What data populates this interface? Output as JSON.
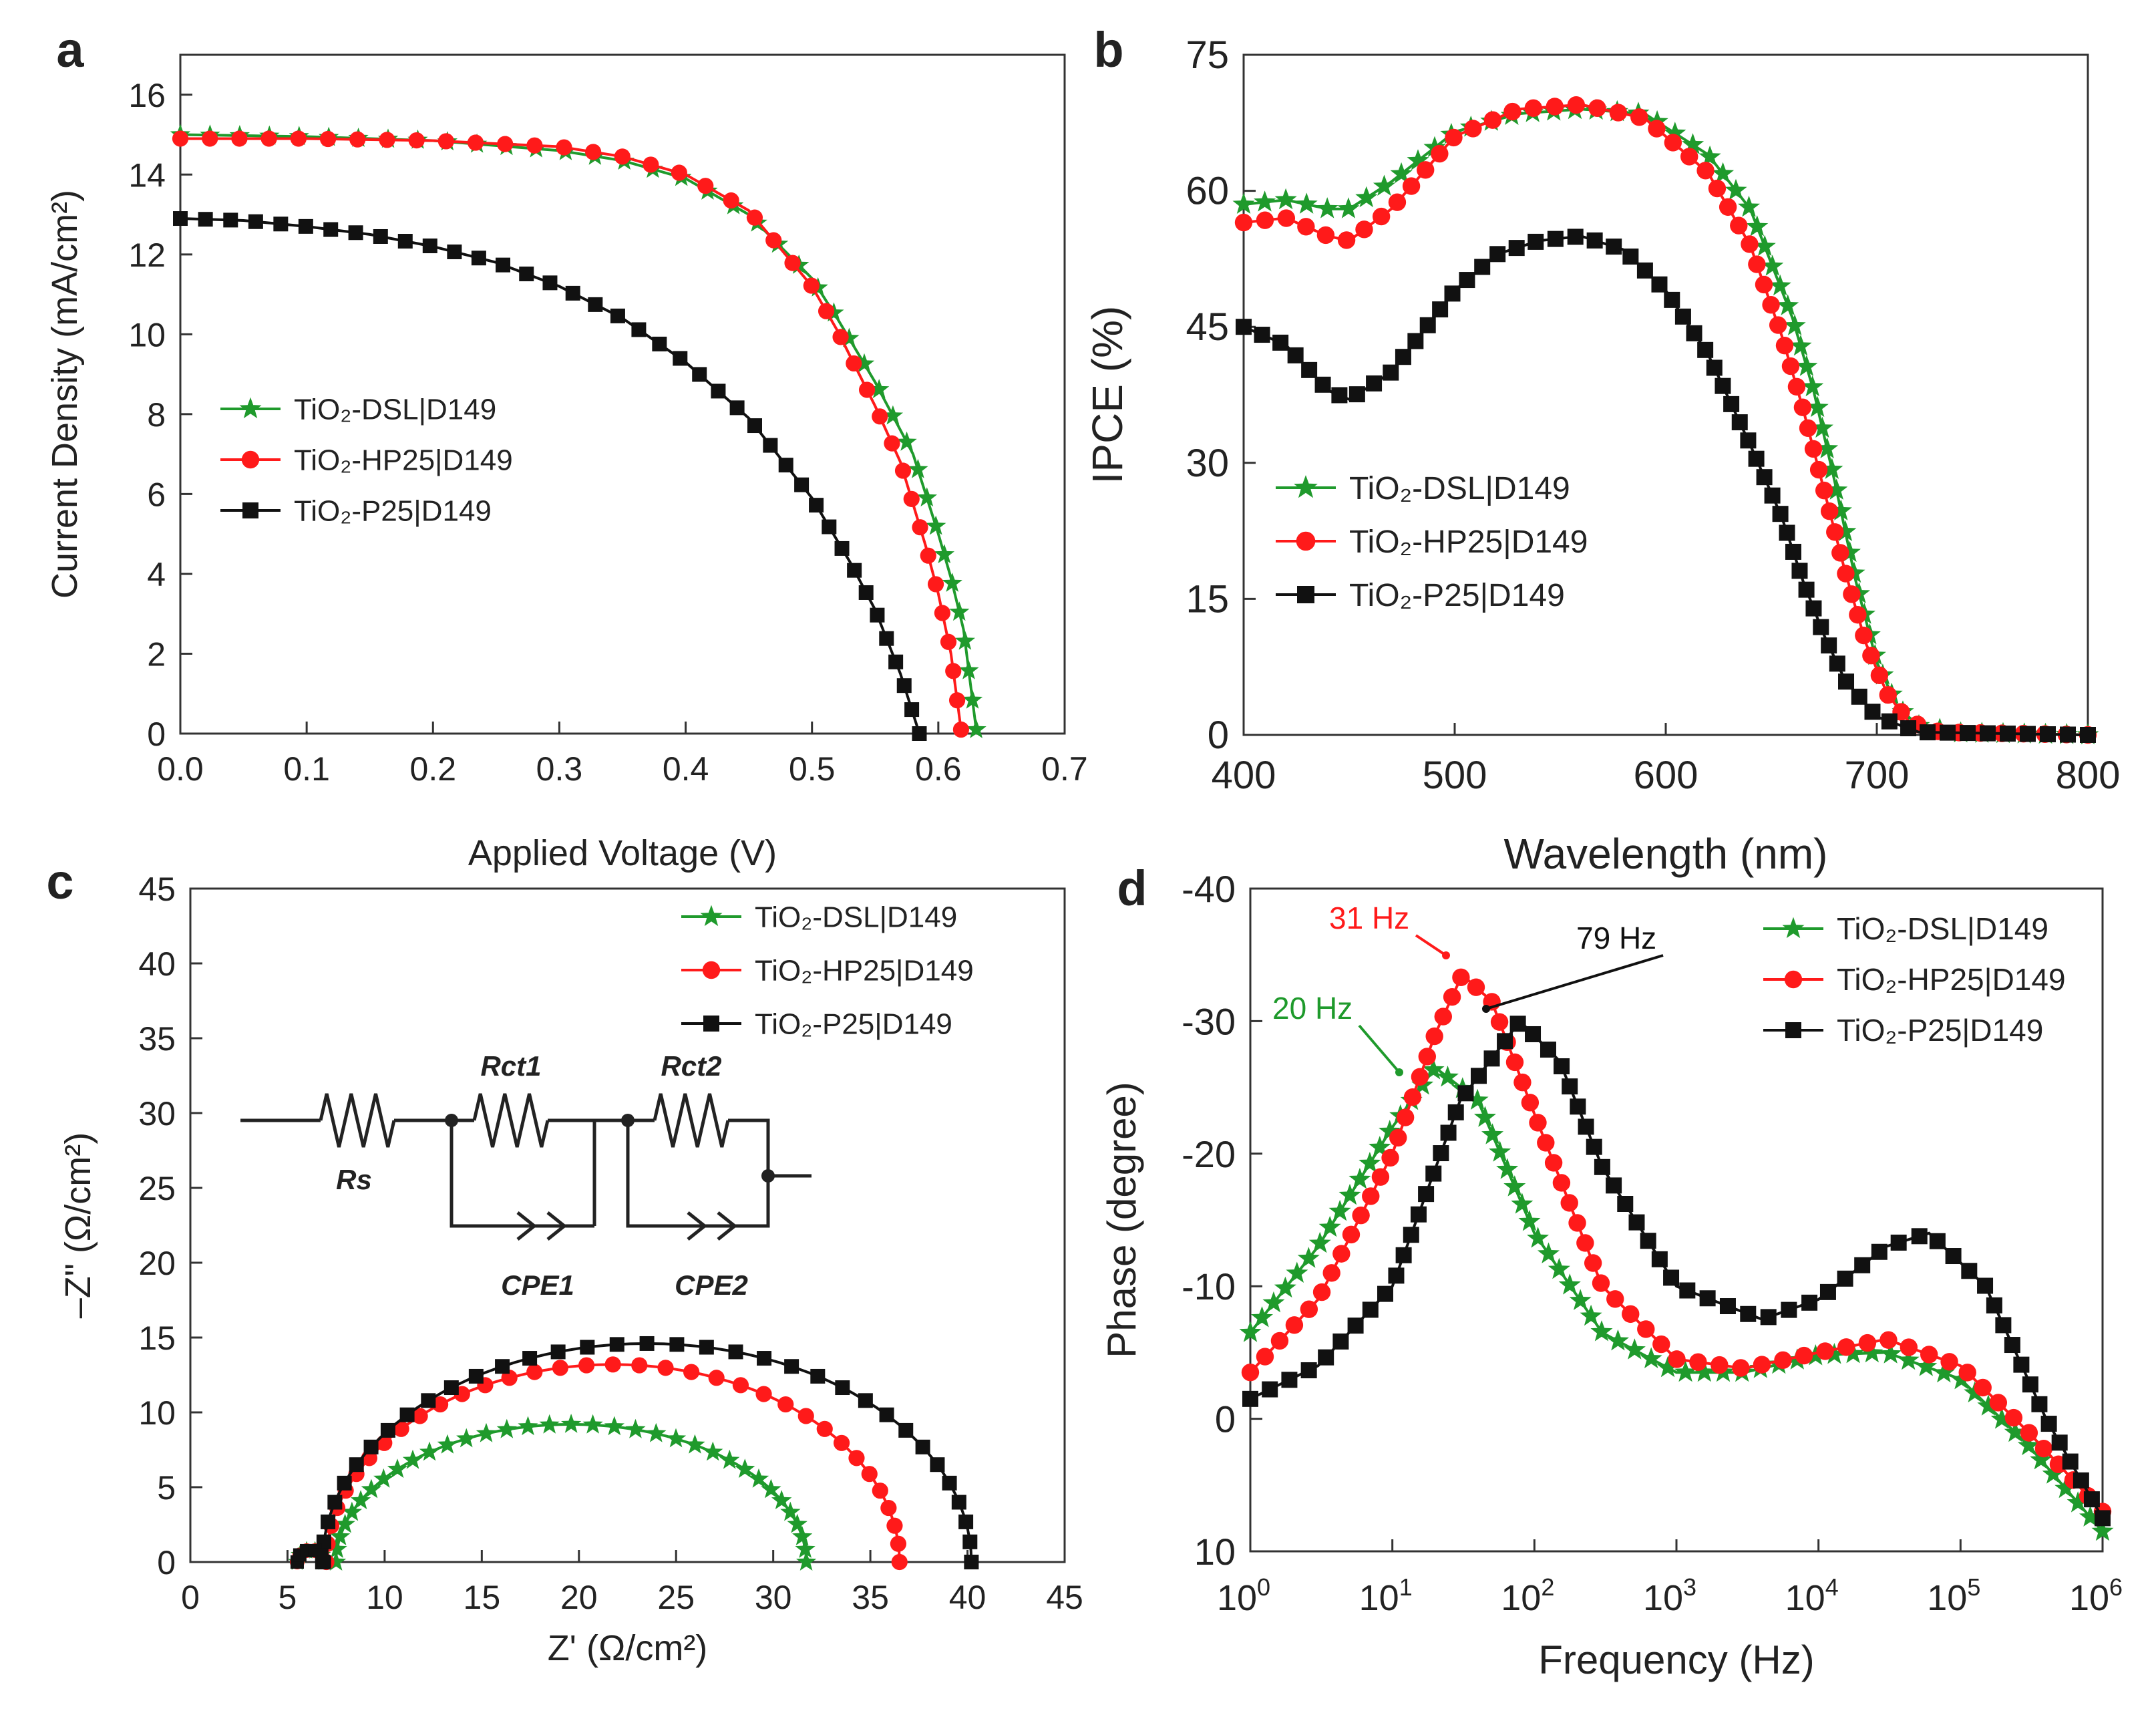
{
  "colors": {
    "green": "#1f9a2c",
    "red": "#ff1a1a",
    "black": "#111111"
  },
  "chart_data": [
    {
      "panel": "a",
      "type": "line",
      "xlabel": "Applied Voltage (V)",
      "ylabel": "Current Density (mA/cm²)",
      "xlim": [
        0,
        0.7
      ],
      "ylim": [
        0,
        17
      ],
      "xticks": [
        0,
        0.1,
        0.2,
        0.3,
        0.4,
        0.5,
        0.6,
        0.7
      ],
      "xtick_labels": [
        "0.0",
        "0.1",
        "0.2",
        "0.3",
        "0.4",
        "0.5",
        "0.6",
        "0.7"
      ],
      "yticks": [
        0,
        2,
        4,
        6,
        8,
        10,
        12,
        14,
        16
      ],
      "ytick_labels": [
        "0",
        "2",
        "4",
        "6",
        "8",
        "10",
        "12",
        "14",
        "16"
      ],
      "legend_position": "middle-left",
      "series": [
        {
          "name": "TiO₂-DSL|D149",
          "color": "#1f9a2c",
          "marker": "star",
          "x": [
            0,
            0.1,
            0.2,
            0.3,
            0.35,
            0.4,
            0.45,
            0.5,
            0.52,
            0.55,
            0.58,
            0.6,
            0.61,
            0.62,
            0.63
          ],
          "y": [
            15.0,
            14.95,
            14.85,
            14.6,
            14.35,
            13.9,
            13.0,
            11.4,
            10.4,
            8.8,
            7.0,
            5.0,
            3.9,
            2.6,
            0.1
          ]
        },
        {
          "name": "TiO₂-HP25|D149",
          "color": "#ff1a1a",
          "marker": "circle",
          "x": [
            0,
            0.1,
            0.2,
            0.3,
            0.35,
            0.4,
            0.45,
            0.5,
            0.52,
            0.55,
            0.57,
            0.59,
            0.6,
            0.61,
            0.618
          ],
          "y": [
            14.9,
            14.9,
            14.85,
            14.7,
            14.45,
            14.0,
            13.1,
            11.2,
            10.1,
            8.2,
            6.8,
            4.7,
            3.5,
            2.0,
            0.1
          ]
        },
        {
          "name": "TiO₂-P25|D149",
          "color": "#111111",
          "marker": "square",
          "x": [
            0,
            0.05,
            0.1,
            0.15,
            0.2,
            0.25,
            0.3,
            0.35,
            0.4,
            0.45,
            0.5,
            0.53,
            0.55,
            0.57,
            0.585
          ],
          "y": [
            12.9,
            12.85,
            12.7,
            12.5,
            12.2,
            11.8,
            11.2,
            10.4,
            9.3,
            7.9,
            5.9,
            4.3,
            3.1,
            1.5,
            0
          ]
        }
      ]
    },
    {
      "panel": "b",
      "type": "line",
      "xlabel": "Wavelength (nm)",
      "ylabel": "IPCE (%)",
      "xlim": [
        400,
        800
      ],
      "ylim": [
        0,
        75
      ],
      "xticks": [
        400,
        500,
        600,
        700,
        800
      ],
      "xtick_labels": [
        "400",
        "500",
        "600",
        "700",
        "800"
      ],
      "yticks": [
        0,
        15,
        30,
        45,
        60,
        75
      ],
      "ytick_labels": [
        "0",
        "15",
        "30",
        "45",
        "60",
        "75"
      ],
      "legend_position": "middle-left",
      "series": [
        {
          "name": "TiO₂-DSL|D149",
          "color": "#1f9a2c",
          "marker": "star",
          "x": [
            400,
            420,
            440,
            450,
            470,
            500,
            530,
            560,
            590,
            620,
            640,
            660,
            670,
            680,
            690,
            700,
            710,
            720,
            740,
            800
          ],
          "y": [
            58.5,
            59,
            58,
            58,
            61,
            66.5,
            68.5,
            69,
            68.5,
            64,
            58,
            46,
            38,
            28,
            17,
            8,
            3,
            1,
            0.2,
            0
          ]
        },
        {
          "name": "TiO₂-HP25|D149",
          "color": "#ff1a1a",
          "marker": "circle",
          "x": [
            400,
            420,
            440,
            450,
            470,
            500,
            530,
            560,
            590,
            620,
            640,
            655,
            665,
            675,
            685,
            695,
            705,
            715,
            730,
            800
          ],
          "y": [
            56.5,
            57,
            55,
            54.5,
            58,
            66,
            69,
            69.5,
            68,
            62,
            54,
            44,
            36,
            27,
            18,
            10,
            4.5,
            1.5,
            0.3,
            0
          ]
        },
        {
          "name": "TiO₂-P25|D149",
          "color": "#111111",
          "marker": "square",
          "x": [
            400,
            420,
            440,
            450,
            470,
            500,
            520,
            540,
            560,
            580,
            600,
            620,
            640,
            655,
            665,
            675,
            685,
            700,
            720,
            800
          ],
          "y": [
            45,
            43,
            38,
            37,
            40,
            49,
            53,
            54.5,
            55,
            53.5,
            49,
            42,
            32,
            24,
            17,
            11,
            6,
            2,
            0.3,
            0
          ]
        }
      ]
    },
    {
      "panel": "c",
      "type": "scatter",
      "xlabel": "Z' (Ω/cm²)",
      "ylabel": "–Z\" (Ω/cm²)",
      "xlim": [
        0,
        45
      ],
      "ylim": [
        0,
        45
      ],
      "xticks": [
        0,
        5,
        10,
        15,
        20,
        25,
        30,
        35,
        40,
        45
      ],
      "xtick_labels": [
        "0",
        "5",
        "10",
        "15",
        "20",
        "25",
        "30",
        "35",
        "40",
        "45"
      ],
      "yticks": [
        0,
        5,
        10,
        15,
        20,
        25,
        30,
        35,
        40,
        45
      ],
      "ytick_labels": [
        "0",
        "5",
        "10",
        "15",
        "20",
        "25",
        "30",
        "35",
        "40",
        "45"
      ],
      "legend_position": "top-right",
      "inset_labels": {
        "rs": "Rs",
        "rct1": "Rct1",
        "rct2": "Rct2",
        "cpe1": "CPE1",
        "cpe2": "CPE2"
      },
      "series": [
        {
          "name": "TiO₂-DSL|D149",
          "color": "#1f9a2c",
          "marker": "star",
          "arc": {
            "start": 7.5,
            "end": 31.7,
            "peak": 9.2
          }
        },
        {
          "name": "TiO₂-HP25|D149",
          "color": "#ff1a1a",
          "marker": "circle",
          "arc": {
            "start": 7.0,
            "end": 36.5,
            "peak": 13.2
          }
        },
        {
          "name": "TiO₂-P25|D149",
          "color": "#111111",
          "marker": "square",
          "arc": {
            "start": 6.8,
            "end": 40.2,
            "peak": 14.6
          }
        }
      ]
    },
    {
      "panel": "d",
      "type": "line",
      "xlabel": "Frequency (Hz)",
      "ylabel": "Phase (degree)",
      "x_scale": "log",
      "xlim": [
        1,
        1000000
      ],
      "ylim": [
        10,
        -40
      ],
      "y_inverted": true,
      "xticks": [
        1,
        10,
        100,
        1000,
        10000,
        100000,
        1000000
      ],
      "xtick_base": "10",
      "xtick_exponents": [
        "0",
        "1",
        "2",
        "3",
        "4",
        "5",
        "6"
      ],
      "yticks": [
        -40,
        -30,
        -20,
        -10,
        0,
        10
      ],
      "ytick_labels": [
        "-40",
        "-30",
        "-20",
        "-10",
        "0",
        "10"
      ],
      "legend_position": "top-right",
      "annotations": [
        {
          "text": "31 Hz",
          "color": "#ff1a1a",
          "x": 31,
          "y": -33.5
        },
        {
          "text": "79 Hz",
          "color": "#111111",
          "x": 79,
          "y": -30
        },
        {
          "text": "20 Hz",
          "color": "#1f9a2c",
          "x": 20,
          "y": -26.5
        }
      ],
      "series": [
        {
          "name": "TiO₂-DSL|D149",
          "color": "#1f9a2c",
          "marker": "star",
          "x": [
            1,
            3,
            10,
            20,
            40,
            100,
            300,
            1000,
            3000,
            10000,
            30000,
            100000,
            300000,
            1000000
          ],
          "y": [
            -6.5,
            -13,
            -22,
            -26.5,
            -24,
            -14,
            -6.5,
            -3.5,
            -3.5,
            -4.8,
            -5,
            -3,
            2,
            8.5
          ]
        },
        {
          "name": "TiO₂-HP25|D149",
          "color": "#ff1a1a",
          "marker": "circle",
          "x": [
            1,
            3,
            10,
            20,
            31,
            50,
            100,
            300,
            1000,
            3000,
            10000,
            30000,
            100000,
            300000,
            1000000
          ],
          "y": [
            -3.5,
            -9,
            -20,
            -29,
            -33.5,
            -31.5,
            -23,
            -10,
            -4.5,
            -3.8,
            -5,
            -6,
            -4,
            1,
            7
          ]
        },
        {
          "name": "TiO₂-P25|D149",
          "color": "#111111",
          "marker": "square",
          "x": [
            1,
            3,
            10,
            30,
            79,
            150,
            300,
            1000,
            4000,
            10000,
            30000,
            60000,
            150000,
            400000,
            1000000
          ],
          "y": [
            -1.5,
            -4,
            -10,
            -24,
            -30,
            -27,
            -19,
            -10,
            -7.5,
            -9,
            -13,
            -14,
            -10,
            0,
            7.5
          ]
        }
      ]
    }
  ],
  "panel_labels": [
    "a",
    "b",
    "c",
    "d"
  ]
}
